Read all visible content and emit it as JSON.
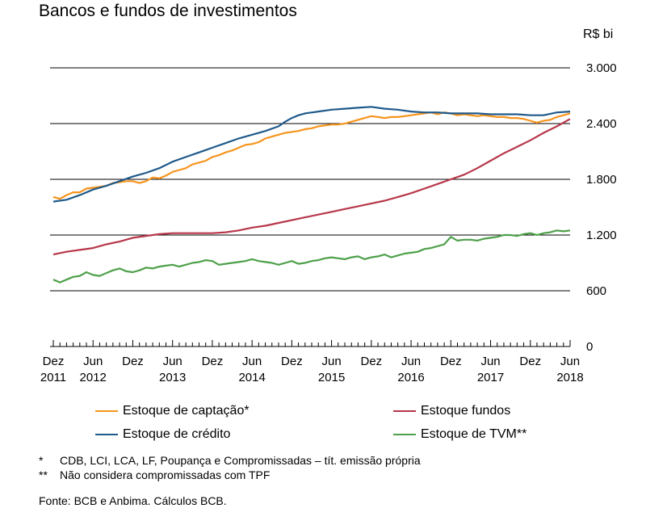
{
  "header": {
    "title": "Bancos e fundos de investimentos",
    "unit": "R$ bi"
  },
  "chart_data": {
    "type": "line",
    "title": "Bancos e fundos de investimentos",
    "ylabel": "R$ bi",
    "ylim": [
      0,
      3000
    ],
    "yticks": [
      0,
      600,
      1200,
      1800,
      2400,
      3000
    ],
    "ytick_labels": [
      "0",
      "600",
      "1.200",
      "1.800",
      "2.400",
      "3.000"
    ],
    "gridlines": [
      600,
      1200,
      1800,
      2400,
      3000
    ],
    "xlim": [
      0,
      78
    ],
    "xticks": [
      {
        "pos": 0,
        "line1": "Dez",
        "line2": "2011"
      },
      {
        "pos": 6,
        "line1": "Jun",
        "line2": "2012"
      },
      {
        "pos": 12,
        "line1": "Dez",
        "line2": ""
      },
      {
        "pos": 18,
        "line1": "Jun",
        "line2": "2013"
      },
      {
        "pos": 24,
        "line1": "Dez",
        "line2": ""
      },
      {
        "pos": 30,
        "line1": "Jun",
        "line2": "2014"
      },
      {
        "pos": 36,
        "line1": "Dez",
        "line2": ""
      },
      {
        "pos": 42,
        "line1": "Jun",
        "line2": "2015"
      },
      {
        "pos": 48,
        "line1": "Dez",
        "line2": ""
      },
      {
        "pos": 54,
        "line1": "Jun",
        "line2": "2016"
      },
      {
        "pos": 60,
        "line1": "Dez",
        "line2": ""
      },
      {
        "pos": 66,
        "line1": "Jun",
        "line2": "2017"
      },
      {
        "pos": 72,
        "line1": "Dez",
        "line2": ""
      },
      {
        "pos": 78,
        "line1": "Jun",
        "line2": "2018"
      }
    ],
    "legend_position": "bottom",
    "series": [
      {
        "name": "Estoque de captação*",
        "color": "#f7941d",
        "points": [
          [
            0,
            1610
          ],
          [
            1,
            1590
          ],
          [
            2,
            1630
          ],
          [
            3,
            1660
          ],
          [
            4,
            1660
          ],
          [
            5,
            1700
          ],
          [
            6,
            1710
          ],
          [
            7,
            1720
          ],
          [
            8,
            1730
          ],
          [
            9,
            1760
          ],
          [
            10,
            1770
          ],
          [
            11,
            1780
          ],
          [
            12,
            1780
          ],
          [
            13,
            1760
          ],
          [
            14,
            1780
          ],
          [
            15,
            1820
          ],
          [
            16,
            1810
          ],
          [
            17,
            1840
          ],
          [
            18,
            1880
          ],
          [
            19,
            1900
          ],
          [
            20,
            1920
          ],
          [
            21,
            1960
          ],
          [
            22,
            1980
          ],
          [
            23,
            2000
          ],
          [
            24,
            2040
          ],
          [
            25,
            2060
          ],
          [
            26,
            2090
          ],
          [
            27,
            2110
          ],
          [
            28,
            2140
          ],
          [
            29,
            2170
          ],
          [
            30,
            2180
          ],
          [
            31,
            2200
          ],
          [
            32,
            2240
          ],
          [
            33,
            2260
          ],
          [
            34,
            2280
          ],
          [
            35,
            2300
          ],
          [
            36,
            2310
          ],
          [
            37,
            2320
          ],
          [
            38,
            2340
          ],
          [
            39,
            2350
          ],
          [
            40,
            2370
          ],
          [
            41,
            2380
          ],
          [
            42,
            2390
          ],
          [
            43,
            2390
          ],
          [
            44,
            2400
          ],
          [
            45,
            2420
          ],
          [
            46,
            2440
          ],
          [
            47,
            2460
          ],
          [
            48,
            2480
          ],
          [
            49,
            2470
          ],
          [
            50,
            2460
          ],
          [
            51,
            2470
          ],
          [
            52,
            2470
          ],
          [
            53,
            2480
          ],
          [
            54,
            2490
          ],
          [
            55,
            2500
          ],
          [
            56,
            2510
          ],
          [
            57,
            2520
          ],
          [
            58,
            2500
          ],
          [
            59,
            2520
          ],
          [
            60,
            2510
          ],
          [
            61,
            2490
          ],
          [
            62,
            2500
          ],
          [
            63,
            2490
          ],
          [
            64,
            2480
          ],
          [
            65,
            2490
          ],
          [
            66,
            2480
          ],
          [
            67,
            2470
          ],
          [
            68,
            2470
          ],
          [
            69,
            2460
          ],
          [
            70,
            2460
          ],
          [
            71,
            2450
          ],
          [
            72,
            2430
          ],
          [
            73,
            2410
          ],
          [
            74,
            2430
          ],
          [
            75,
            2440
          ],
          [
            76,
            2470
          ],
          [
            77,
            2490
          ],
          [
            78,
            2510
          ]
        ]
      },
      {
        "name": "Estoque fundos",
        "color": "#b7374a",
        "points": [
          [
            0,
            990
          ],
          [
            2,
            1020
          ],
          [
            4,
            1040
          ],
          [
            6,
            1060
          ],
          [
            8,
            1100
          ],
          [
            10,
            1130
          ],
          [
            12,
            1170
          ],
          [
            14,
            1190
          ],
          [
            16,
            1210
          ],
          [
            18,
            1220
          ],
          [
            20,
            1220
          ],
          [
            22,
            1220
          ],
          [
            24,
            1220
          ],
          [
            26,
            1230
          ],
          [
            28,
            1250
          ],
          [
            30,
            1280
          ],
          [
            32,
            1300
          ],
          [
            34,
            1330
          ],
          [
            36,
            1360
          ],
          [
            38,
            1390
          ],
          [
            40,
            1420
          ],
          [
            42,
            1450
          ],
          [
            44,
            1480
          ],
          [
            46,
            1510
          ],
          [
            48,
            1540
          ],
          [
            50,
            1570
          ],
          [
            52,
            1610
          ],
          [
            54,
            1650
          ],
          [
            56,
            1700
          ],
          [
            58,
            1750
          ],
          [
            60,
            1800
          ],
          [
            62,
            1850
          ],
          [
            64,
            1920
          ],
          [
            66,
            2000
          ],
          [
            68,
            2080
          ],
          [
            70,
            2150
          ],
          [
            72,
            2220
          ],
          [
            74,
            2300
          ],
          [
            76,
            2370
          ],
          [
            77,
            2410
          ],
          [
            78,
            2450
          ]
        ]
      },
      {
        "name": "Estoque de crédito",
        "color": "#1f5a8b",
        "points": [
          [
            0,
            1560
          ],
          [
            2,
            1580
          ],
          [
            4,
            1630
          ],
          [
            6,
            1690
          ],
          [
            8,
            1730
          ],
          [
            10,
            1780
          ],
          [
            12,
            1830
          ],
          [
            14,
            1870
          ],
          [
            16,
            1920
          ],
          [
            18,
            1990
          ],
          [
            20,
            2040
          ],
          [
            22,
            2090
          ],
          [
            24,
            2140
          ],
          [
            26,
            2190
          ],
          [
            28,
            2240
          ],
          [
            30,
            2280
          ],
          [
            32,
            2320
          ],
          [
            34,
            2370
          ],
          [
            35,
            2420
          ],
          [
            36,
            2460
          ],
          [
            37,
            2490
          ],
          [
            38,
            2510
          ],
          [
            40,
            2530
          ],
          [
            42,
            2550
          ],
          [
            44,
            2560
          ],
          [
            46,
            2570
          ],
          [
            48,
            2580
          ],
          [
            50,
            2560
          ],
          [
            52,
            2550
          ],
          [
            54,
            2530
          ],
          [
            56,
            2520
          ],
          [
            58,
            2520
          ],
          [
            60,
            2510
          ],
          [
            62,
            2510
          ],
          [
            64,
            2510
          ],
          [
            66,
            2500
          ],
          [
            68,
            2500
          ],
          [
            70,
            2500
          ],
          [
            72,
            2490
          ],
          [
            74,
            2490
          ],
          [
            76,
            2520
          ],
          [
            78,
            2530
          ]
        ]
      },
      {
        "name": "Estoque de TVM**",
        "color": "#4ea04a",
        "points": [
          [
            0,
            720
          ],
          [
            1,
            690
          ],
          [
            2,
            720
          ],
          [
            3,
            750
          ],
          [
            4,
            760
          ],
          [
            5,
            800
          ],
          [
            6,
            770
          ],
          [
            7,
            760
          ],
          [
            8,
            790
          ],
          [
            9,
            820
          ],
          [
            10,
            840
          ],
          [
            11,
            810
          ],
          [
            12,
            800
          ],
          [
            13,
            820
          ],
          [
            14,
            850
          ],
          [
            15,
            840
          ],
          [
            16,
            860
          ],
          [
            17,
            870
          ],
          [
            18,
            880
          ],
          [
            19,
            860
          ],
          [
            20,
            880
          ],
          [
            21,
            900
          ],
          [
            22,
            910
          ],
          [
            23,
            930
          ],
          [
            24,
            920
          ],
          [
            25,
            880
          ],
          [
            26,
            890
          ],
          [
            27,
            900
          ],
          [
            28,
            910
          ],
          [
            29,
            920
          ],
          [
            30,
            940
          ],
          [
            31,
            920
          ],
          [
            32,
            910
          ],
          [
            33,
            900
          ],
          [
            34,
            880
          ],
          [
            35,
            900
          ],
          [
            36,
            920
          ],
          [
            37,
            890
          ],
          [
            38,
            900
          ],
          [
            39,
            920
          ],
          [
            40,
            930
          ],
          [
            41,
            950
          ],
          [
            42,
            960
          ],
          [
            43,
            950
          ],
          [
            44,
            940
          ],
          [
            45,
            960
          ],
          [
            46,
            970
          ],
          [
            47,
            940
          ],
          [
            48,
            960
          ],
          [
            49,
            970
          ],
          [
            50,
            990
          ],
          [
            51,
            960
          ],
          [
            52,
            980
          ],
          [
            53,
            1000
          ],
          [
            54,
            1010
          ],
          [
            55,
            1020
          ],
          [
            56,
            1050
          ],
          [
            57,
            1060
          ],
          [
            58,
            1080
          ],
          [
            59,
            1100
          ],
          [
            60,
            1180
          ],
          [
            61,
            1140
          ],
          [
            62,
            1150
          ],
          [
            63,
            1150
          ],
          [
            64,
            1140
          ],
          [
            65,
            1160
          ],
          [
            66,
            1170
          ],
          [
            67,
            1180
          ],
          [
            68,
            1200
          ],
          [
            69,
            1200
          ],
          [
            70,
            1190
          ],
          [
            71,
            1210
          ],
          [
            72,
            1220
          ],
          [
            73,
            1200
          ],
          [
            74,
            1220
          ],
          [
            75,
            1230
          ],
          [
            76,
            1250
          ],
          [
            77,
            1240
          ],
          [
            78,
            1250
          ]
        ]
      }
    ]
  },
  "legend": [
    {
      "label": "Estoque de captação*",
      "color": "#f7941d"
    },
    {
      "label": "Estoque fundos",
      "color": "#b7374a"
    },
    {
      "label": "Estoque de crédito",
      "color": "#1f5a8b"
    },
    {
      "label": "Estoque de TVM**",
      "color": "#4ea04a"
    }
  ],
  "notes": [
    {
      "mark": "*",
      "text": "CDB, LCI, LCA, LF, Poupança e Compromissadas – tít. emissão própria"
    },
    {
      "mark": "**",
      "text": "Não considera compromissadas com TPF"
    }
  ],
  "source": "Fonte: BCB e Anbima. Cálculos BCB."
}
